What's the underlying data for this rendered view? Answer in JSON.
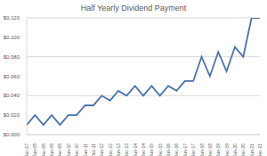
{
  "chart_data": {
    "type": "line",
    "title": "Half Yearly Dividend Payment",
    "categories": [
      "Dec-07",
      "Jun-08",
      "Dec-08",
      "Jun-09",
      "Dec-09",
      "Jun-10",
      "Dec-10",
      "Jun-11",
      "Dec-11",
      "Jun-12",
      "Dec-12",
      "Jun-13",
      "Dec-13",
      "Jun-14",
      "Dec-14",
      "Jun-15",
      "Dec-15",
      "Jun-16",
      "Dec-16",
      "Jun-17",
      "Dec-17",
      "Jun-18",
      "Dec-18",
      "Jun-19",
      "Dec-19",
      "Jun-20",
      "Dec-20",
      "Jun-21",
      "Dec-21"
    ],
    "values": [
      0.01,
      0.02,
      0.01,
      0.02,
      0.01,
      0.02,
      0.02,
      0.03,
      0.03,
      0.04,
      0.035,
      0.045,
      0.04,
      0.05,
      0.04,
      0.05,
      0.04,
      0.05,
      0.045,
      0.055,
      0.055,
      0.08,
      0.06,
      0.085,
      0.065,
      0.09,
      0.08,
      0.12,
      0.12
    ],
    "color": "#4a72b0",
    "ylim": [
      0,
      0.12
    ],
    "yticks": [
      {
        "value": 0,
        "label": "$0.000"
      },
      {
        "value": 0.02,
        "label": "$0.020"
      },
      {
        "value": 0.04,
        "label": "$0.040"
      },
      {
        "value": 0.06,
        "label": "$0.060"
      },
      {
        "value": 0.08,
        "label": "$0.080"
      },
      {
        "value": 0.1,
        "label": "$0.100"
      },
      {
        "value": 0.12,
        "label": "$0.120"
      }
    ],
    "grid": true
  }
}
